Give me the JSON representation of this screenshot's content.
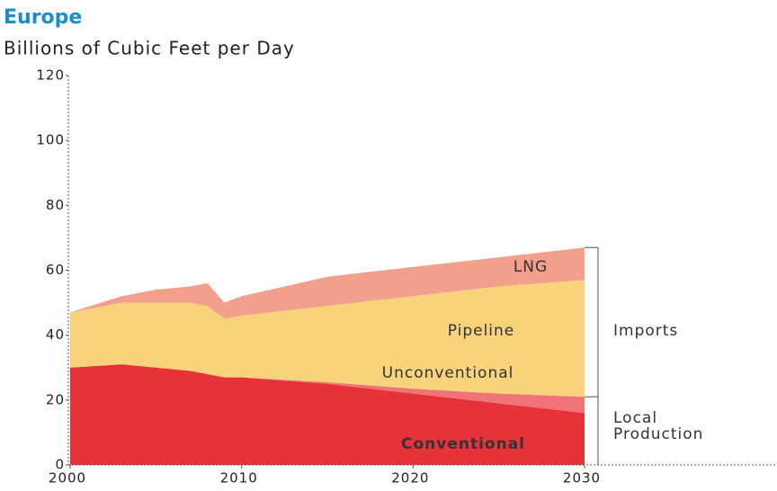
{
  "chart_data": {
    "type": "area",
    "title": "Europe",
    "subtitle": "Billions of Cubic Feet per Day",
    "x": [
      2000,
      2003,
      2005,
      2007,
      2008,
      2009,
      2010,
      2015,
      2020,
      2025,
      2030
    ],
    "series": [
      {
        "name": "Conventional",
        "color": "#e8323a",
        "values": [
          30,
          31,
          30,
          29,
          28,
          27,
          27,
          25,
          22,
          19,
          16
        ]
      },
      {
        "name": "Unconventional",
        "color": "#f07378",
        "values": [
          0,
          0,
          0,
          0,
          0,
          0,
          0,
          0.5,
          1.5,
          3,
          5
        ]
      },
      {
        "name": "Pipeline",
        "color": "#f8d37c",
        "values": [
          17,
          19,
          20,
          21,
          21,
          18,
          19,
          23.5,
          28.5,
          33,
          36
        ]
      },
      {
        "name": "LNG",
        "color": "#f2a08c",
        "values": [
          0,
          2,
          4,
          5,
          7,
          5,
          6,
          9,
          9,
          9,
          10
        ]
      }
    ],
    "stacked": true,
    "xlim": [
      2000,
      2030
    ],
    "xticks": [
      2000,
      2010,
      2020,
      2030
    ],
    "ylim": [
      0,
      120
    ],
    "yticks": [
      0,
      20,
      40,
      60,
      80,
      100,
      120
    ],
    "annotations": {
      "imports": "Imports",
      "local_production": "Local Production"
    }
  }
}
